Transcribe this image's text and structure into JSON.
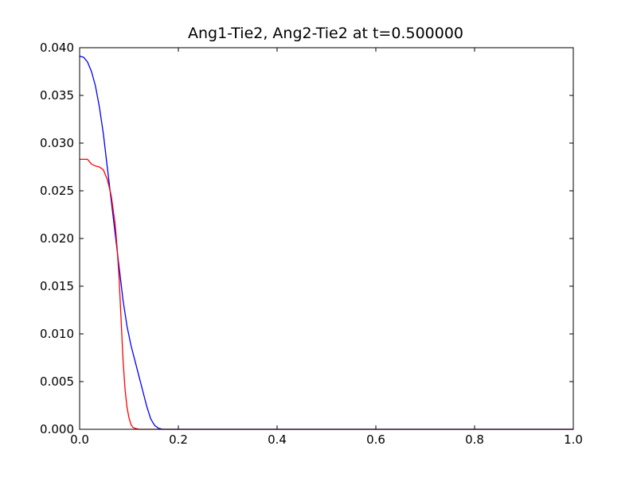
{
  "chart_data": {
    "type": "line",
    "title": "Ang1-Tie2, Ang2-Tie2 at t=0.500000",
    "xlabel": "",
    "ylabel": "",
    "xlim": [
      0.0,
      1.0
    ],
    "ylim": [
      0.0,
      0.04
    ],
    "xticks": [
      "0.0",
      "0.2",
      "0.4",
      "0.6",
      "0.8",
      "1.0"
    ],
    "yticks": [
      "0.000",
      "0.005",
      "0.010",
      "0.015",
      "0.020",
      "0.025",
      "0.030",
      "0.035",
      "0.040"
    ],
    "grid": false,
    "legend": "none",
    "series": [
      {
        "color": "#0000ff",
        "x": [
          0.0,
          0.008,
          0.016,
          0.024,
          0.032,
          0.04,
          0.048,
          0.056,
          0.064,
          0.072,
          0.08,
          0.088,
          0.096,
          0.104,
          0.112,
          0.12,
          0.128,
          0.136,
          0.144,
          0.152,
          0.16,
          0.168,
          0.176,
          0.184,
          0.2,
          0.3,
          0.4,
          0.5,
          0.6,
          0.7,
          0.8,
          0.9,
          1.0
        ],
        "values": [
          0.0391,
          0.039,
          0.0385,
          0.0375,
          0.036,
          0.0338,
          0.031,
          0.0275,
          0.024,
          0.0205,
          0.017,
          0.0135,
          0.0108,
          0.0088,
          0.0072,
          0.0056,
          0.004,
          0.0024,
          0.0011,
          0.0004,
          0.0001,
          0.0,
          0.0,
          0.0,
          0.0,
          0.0,
          0.0,
          0.0,
          0.0,
          0.0,
          0.0,
          0.0,
          0.0
        ]
      },
      {
        "color": "#ff0000",
        "x": [
          0.0,
          0.008,
          0.016,
          0.024,
          0.032,
          0.04,
          0.048,
          0.056,
          0.064,
          0.072,
          0.076,
          0.08,
          0.084,
          0.088,
          0.092,
          0.096,
          0.1,
          0.104,
          0.108,
          0.112,
          0.12,
          0.128,
          0.136,
          0.16,
          0.2,
          0.3,
          0.4,
          0.5,
          0.6,
          0.7,
          0.8,
          0.9,
          1.0
        ],
        "values": [
          0.0283,
          0.0283,
          0.0283,
          0.0278,
          0.0276,
          0.0275,
          0.0272,
          0.0262,
          0.0245,
          0.0215,
          0.019,
          0.0158,
          0.0115,
          0.0072,
          0.0042,
          0.0023,
          0.0012,
          0.0005,
          0.0002,
          0.0001,
          0.0,
          0.0,
          0.0,
          0.0,
          0.0,
          0.0,
          0.0,
          0.0,
          0.0,
          0.0,
          0.0,
          0.0,
          0.0
        ]
      }
    ]
  }
}
